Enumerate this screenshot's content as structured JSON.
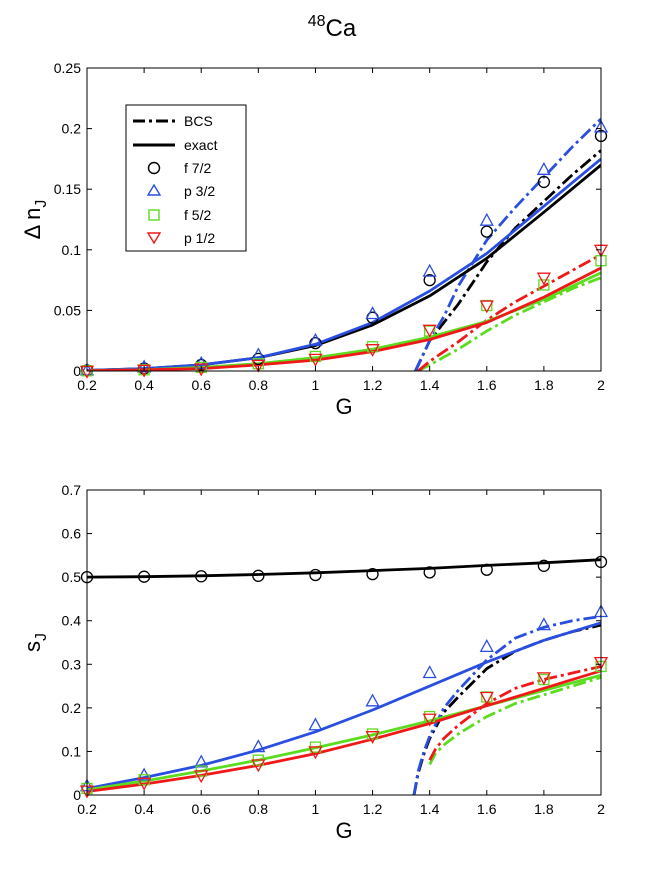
{
  "title": {
    "prefix": "48",
    "text": "Ca"
  },
  "legend": [
    "BCS",
    "exact",
    "f 7/2",
    "p 3/2",
    "f 5/2",
    "p 1/2"
  ],
  "chart_data": [
    {
      "type": "line",
      "name": "delta-n",
      "ylabel_main": "Δ n",
      "ylabel_sub": "J",
      "xlabel": "G",
      "xlim": [
        0.2,
        2.0
      ],
      "ylim": [
        0,
        0.25
      ],
      "xticks": [
        0.2,
        0.4,
        0.6,
        0.8,
        1,
        1.2,
        1.4,
        1.6,
        1.8,
        2
      ],
      "xtick_labels": [
        "0.2",
        "0.4",
        "0.6",
        "0.8",
        "1",
        "1.2",
        "1.4",
        "1.6",
        "1.8",
        "2"
      ],
      "yticks": [
        0,
        0.05,
        0.1,
        0.15,
        0.2,
        0.25
      ],
      "ytick_labels": [
        "0",
        "0.05",
        "0.1",
        "0.15",
        "0.2",
        "0.25"
      ],
      "exact": [
        {
          "name": "f 7/2",
          "color": "#000000",
          "x": [
            0.2,
            0.4,
            0.6,
            0.8,
            1,
            1.2,
            1.4,
            1.6,
            1.8,
            2
          ],
          "y": [
            0.0005,
            0.002,
            0.005,
            0.011,
            0.021,
            0.038,
            0.062,
            0.093,
            0.131,
            0.17
          ]
        },
        {
          "name": "p 3/2",
          "color": "#2a4ee0",
          "x": [
            0.2,
            0.4,
            0.6,
            0.8,
            1,
            1.2,
            1.4,
            1.6,
            1.8,
            2
          ],
          "y": [
            0.0005,
            0.002,
            0.005,
            0.011,
            0.022,
            0.04,
            0.066,
            0.097,
            0.136,
            0.175
          ]
        },
        {
          "name": "f 5/2",
          "color": "#5bdc1e",
          "x": [
            0.2,
            0.4,
            0.6,
            0.8,
            1,
            1.2,
            1.4,
            1.6,
            1.8,
            2
          ],
          "y": [
            0.0003,
            0.001,
            0.003,
            0.006,
            0.011,
            0.018,
            0.028,
            0.041,
            0.059,
            0.081
          ]
        },
        {
          "name": "p 1/2",
          "color": "#f01818",
          "x": [
            0.2,
            0.4,
            0.6,
            0.8,
            1,
            1.2,
            1.4,
            1.6,
            1.8,
            2
          ],
          "y": [
            0.0002,
            0.001,
            0.002,
            0.005,
            0.009,
            0.016,
            0.026,
            0.04,
            0.061,
            0.085
          ]
        }
      ],
      "bcs": [
        {
          "name": "f 7/2",
          "color": "#000000",
          "x": [
            1.35,
            1.4,
            1.45,
            1.5,
            1.6,
            1.7,
            1.8,
            1.9,
            2
          ],
          "y": [
            0,
            0.025,
            0.04,
            0.055,
            0.09,
            0.118,
            0.14,
            0.162,
            0.182
          ]
        },
        {
          "name": "p 3/2",
          "color": "#2a4ee0",
          "x": [
            1.35,
            1.4,
            1.45,
            1.5,
            1.6,
            1.7,
            1.8,
            1.9,
            2
          ],
          "y": [
            0,
            0.025,
            0.045,
            0.07,
            0.108,
            0.135,
            0.16,
            0.185,
            0.208
          ]
        },
        {
          "name": "f 5/2",
          "color": "#5bdc1e",
          "x": [
            1.36,
            1.4,
            1.5,
            1.6,
            1.7,
            1.8,
            1.9,
            2
          ],
          "y": [
            0,
            0.005,
            0.018,
            0.033,
            0.046,
            0.057,
            0.068,
            0.077
          ]
        },
        {
          "name": "p 1/2",
          "color": "#f01818",
          "x": [
            1.36,
            1.4,
            1.5,
            1.6,
            1.7,
            1.8,
            1.9,
            2
          ],
          "y": [
            0,
            0.008,
            0.024,
            0.042,
            0.057,
            0.07,
            0.083,
            0.096
          ]
        }
      ],
      "markers": [
        {
          "name": "f 7/2",
          "shape": "circle",
          "color": "#000000",
          "x": [
            0.2,
            0.4,
            0.6,
            0.8,
            1,
            1.2,
            1.4,
            1.6,
            1.8,
            2
          ],
          "y": [
            0.0005,
            0.002,
            0.005,
            0.01,
            0.023,
            0.044,
            0.075,
            0.115,
            0.156,
            0.194
          ]
        },
        {
          "name": "p 3/2",
          "shape": "triangle-up",
          "color": "#2a4ee0",
          "x": [
            0.2,
            0.4,
            0.6,
            0.8,
            1,
            1.2,
            1.4,
            1.6,
            1.8,
            2
          ],
          "y": [
            0.0005,
            0.003,
            0.006,
            0.013,
            0.025,
            0.047,
            0.082,
            0.124,
            0.166,
            0.201
          ]
        },
        {
          "name": "f 5/2",
          "shape": "square",
          "color": "#5bdc1e",
          "x": [
            0.2,
            0.4,
            0.6,
            0.8,
            1,
            1.2,
            1.4,
            1.6,
            1.8,
            2
          ],
          "y": [
            0.0002,
            0.001,
            0.003,
            0.006,
            0.012,
            0.02,
            0.033,
            0.054,
            0.071,
            0.091
          ]
        },
        {
          "name": "p 1/2",
          "shape": "triangle-down",
          "color": "#f01818",
          "x": [
            0.2,
            0.4,
            0.6,
            0.8,
            1,
            1.2,
            1.4,
            1.6,
            1.8,
            2
          ],
          "y": [
            0.0001,
            0.001,
            0.002,
            0.005,
            0.01,
            0.018,
            0.034,
            0.054,
            0.077,
            0.1
          ]
        }
      ]
    },
    {
      "type": "line",
      "name": "entropy",
      "ylabel_main": "s",
      "ylabel_sub": "J",
      "xlabel": "G",
      "xlim": [
        0.2,
        2.0
      ],
      "ylim": [
        0,
        0.7
      ],
      "xticks": [
        0.2,
        0.4,
        0.6,
        0.8,
        1,
        1.2,
        1.4,
        1.6,
        1.8,
        2
      ],
      "xtick_labels": [
        "0.2",
        "0.4",
        "0.6",
        "0.8",
        "1",
        "1.2",
        "1.4",
        "1.6",
        "1.8",
        "2"
      ],
      "yticks": [
        0,
        0.1,
        0.2,
        0.3,
        0.4,
        0.5,
        0.6,
        0.7
      ],
      "ytick_labels": [
        "0",
        "0.1",
        "0.2",
        "0.3",
        "0.4",
        "0.5",
        "0.6",
        "0.7"
      ],
      "exact": [
        {
          "name": "f 7/2",
          "color": "#000000",
          "x": [
            0.2,
            0.4,
            0.6,
            0.8,
            1,
            1.2,
            1.4,
            1.6,
            1.8,
            2
          ],
          "y": [
            0.5,
            0.501,
            0.503,
            0.506,
            0.51,
            0.515,
            0.52,
            0.527,
            0.533,
            0.54
          ]
        },
        {
          "name": "p 3/2",
          "color": "#2a4ee0",
          "x": [
            0.2,
            0.4,
            0.6,
            0.8,
            1,
            1.2,
            1.4,
            1.6,
            1.8,
            2
          ],
          "y": [
            0.015,
            0.04,
            0.068,
            0.103,
            0.145,
            0.195,
            0.25,
            0.305,
            0.355,
            0.395
          ]
        },
        {
          "name": "f 5/2",
          "color": "#5bdc1e",
          "x": [
            0.2,
            0.4,
            0.6,
            0.8,
            1,
            1.2,
            1.4,
            1.6,
            1.8,
            2
          ],
          "y": [
            0.012,
            0.032,
            0.055,
            0.08,
            0.108,
            0.138,
            0.17,
            0.205,
            0.24,
            0.275
          ]
        },
        {
          "name": "p 1/2",
          "color": "#f01818",
          "x": [
            0.2,
            0.4,
            0.6,
            0.8,
            1,
            1.2,
            1.4,
            1.6,
            1.8,
            2
          ],
          "y": [
            0.008,
            0.025,
            0.045,
            0.068,
            0.095,
            0.128,
            0.164,
            0.205,
            0.245,
            0.285
          ]
        }
      ],
      "bcs": [
        {
          "name": "f 7/2",
          "color": "#000000",
          "x": [
            1.345,
            1.36,
            1.38,
            1.4,
            1.45,
            1.5,
            1.6,
            1.7,
            1.8,
            1.9,
            2
          ],
          "y": [
            0,
            0.05,
            0.095,
            0.13,
            0.19,
            0.225,
            0.29,
            0.33,
            0.355,
            0.375,
            0.39
          ]
        },
        {
          "name": "p 3/2",
          "color": "#2a4ee0",
          "x": [
            1.345,
            1.36,
            1.38,
            1.4,
            1.45,
            1.5,
            1.6,
            1.7,
            1.8,
            1.9,
            2
          ],
          "y": [
            0,
            0.055,
            0.1,
            0.135,
            0.2,
            0.24,
            0.31,
            0.36,
            0.385,
            0.4,
            0.41
          ]
        },
        {
          "name": "f 5/2",
          "color": "#5bdc1e",
          "x": [
            1.4,
            1.42,
            1.45,
            1.5,
            1.6,
            1.7,
            1.8,
            1.9,
            2
          ],
          "y": [
            0.07,
            0.095,
            0.115,
            0.14,
            0.18,
            0.21,
            0.23,
            0.25,
            0.27
          ]
        },
        {
          "name": "p 1/2",
          "color": "#f01818",
          "x": [
            1.4,
            1.42,
            1.45,
            1.5,
            1.6,
            1.7,
            1.8,
            1.9,
            2
          ],
          "y": [
            0.08,
            0.105,
            0.13,
            0.16,
            0.21,
            0.245,
            0.265,
            0.28,
            0.295
          ]
        }
      ],
      "markers": [
        {
          "name": "f 7/2",
          "shape": "circle",
          "color": "#000000",
          "x": [
            0.2,
            0.4,
            0.6,
            0.8,
            1,
            1.2,
            1.4,
            1.6,
            1.8,
            2
          ],
          "y": [
            0.5,
            0.501,
            0.502,
            0.503,
            0.505,
            0.507,
            0.511,
            0.517,
            0.526,
            0.535
          ]
        },
        {
          "name": "p 3/2",
          "shape": "triangle-up",
          "color": "#2a4ee0",
          "x": [
            0.2,
            0.4,
            0.6,
            0.8,
            1,
            1.2,
            1.4,
            1.6,
            1.8,
            2
          ],
          "y": [
            0.02,
            0.045,
            0.075,
            0.11,
            0.16,
            0.215,
            0.28,
            0.34,
            0.39,
            0.42
          ]
        },
        {
          "name": "f 5/2",
          "shape": "square",
          "color": "#5bdc1e",
          "x": [
            0.2,
            0.4,
            0.6,
            0.8,
            1,
            1.2,
            1.4,
            1.6,
            1.8,
            2
          ],
          "y": [
            0.015,
            0.035,
            0.055,
            0.08,
            0.11,
            0.14,
            0.18,
            0.225,
            0.265,
            0.295
          ]
        },
        {
          "name": "p 1/2",
          "shape": "triangle-down",
          "color": "#f01818",
          "x": [
            0.2,
            0.4,
            0.6,
            0.8,
            1,
            1.2,
            1.4,
            1.6,
            1.8,
            2
          ],
          "y": [
            0.01,
            0.028,
            0.045,
            0.07,
            0.1,
            0.135,
            0.175,
            0.225,
            0.27,
            0.305
          ]
        }
      ]
    }
  ]
}
